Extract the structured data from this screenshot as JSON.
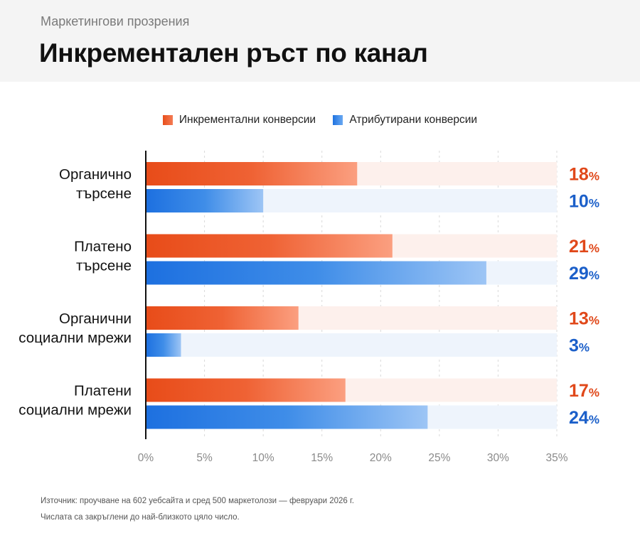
{
  "header": {
    "kicker": "Маркетингови прозрения",
    "title": "Инкрементален ръст по канал"
  },
  "chart_data": {
    "type": "bar",
    "orientation": "horizontal",
    "categories": [
      [
        "Органично",
        "търсене"
      ],
      [
        "Платено",
        "търсене"
      ],
      [
        "Органични",
        "социални мрежи"
      ],
      [
        "Платени",
        "социални мрежи"
      ]
    ],
    "series": [
      {
        "name": "Инкрементални конверсии",
        "values": [
          18,
          21,
          13,
          17
        ],
        "color": "#e84e1b",
        "label_color": "#e0481a"
      },
      {
        "name": "Атрибутирани конверсии",
        "values": [
          10,
          29,
          3,
          24
        ],
        "color": "#1f73e0",
        "label_color": "#1b5fc9"
      }
    ],
    "value_suffix": "%",
    "xlim": [
      0,
      35
    ],
    "xticks": [
      0,
      5,
      10,
      15,
      20,
      25,
      30,
      35
    ],
    "xtick_labels": [
      "0%",
      "5%",
      "10%",
      "15%",
      "20%",
      "25%",
      "30%",
      "35%"
    ],
    "grid": true,
    "legend": "top-center"
  },
  "footer": {
    "source": "Източник: проучване на 602 уебсайта и сред 500 маркетолози — февруари 2026 г.",
    "note": "Числата са закръглени до най-близкото цяло число."
  }
}
